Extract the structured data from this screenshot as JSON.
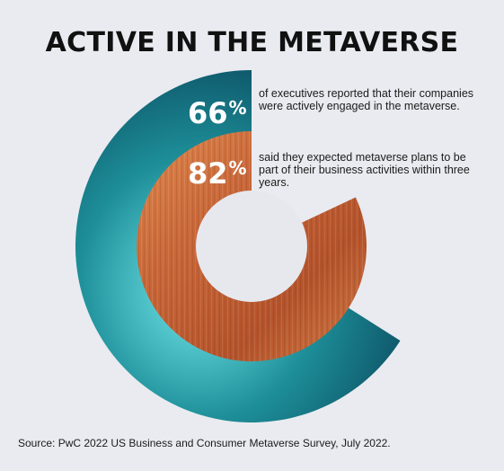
{
  "chart_data": {
    "type": "pie",
    "title": "ACTIVE IN THE METAVERSE",
    "series": [
      {
        "value": 66,
        "display": "66",
        "unit": "%",
        "description": "of executives reported that their companies were actively engaged in the metaverse.",
        "color_theme": "#1f7f8c"
      },
      {
        "value": 82,
        "display": "82",
        "unit": "%",
        "description": "said they expected metaverse plans to be part of their business activities within three years.",
        "color_theme": "#c96a35"
      }
    ],
    "source": "Source: PwC 2022 US Business and Consumer Metaverse Survey, July 2022."
  },
  "colors": {
    "background": "#e9ebf0",
    "outer_ring": "#1c8f96",
    "inner_ring": "#c8683a",
    "hole": "#e6e8ee"
  }
}
